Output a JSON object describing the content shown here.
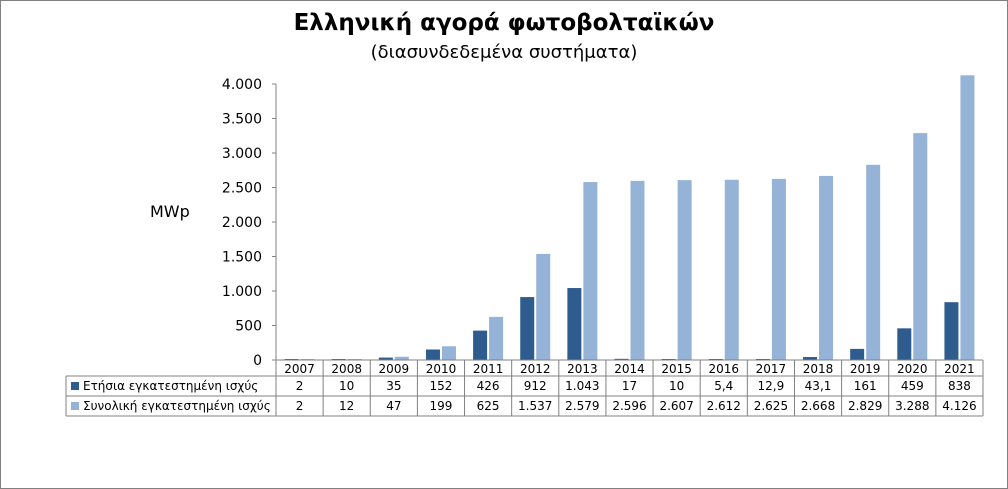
{
  "chart_data": {
    "type": "bar",
    "title": "Ελληνική αγορά φωτοβολταϊκών",
    "subtitle": "(διασυνδεδεμένα συστήματα)",
    "ylabel": "MWp",
    "xlabel": "",
    "ylim": [
      0,
      4000
    ],
    "yticks": [
      0,
      500,
      1000,
      1500,
      2000,
      2500,
      3000,
      3500,
      4000
    ],
    "ytick_labels": [
      "0",
      "500",
      "1.000",
      "1.500",
      "2.000",
      "2.500",
      "3.000",
      "3.500",
      "4.000"
    ],
    "grid": false,
    "legend": "data-table",
    "categories": [
      "2007",
      "2008",
      "2009",
      "2010",
      "2011",
      "2012",
      "2013",
      "2014",
      "2015",
      "2016",
      "2017",
      "2018",
      "2019",
      "2020",
      "2021"
    ],
    "series": [
      {
        "name": "Ετήσια εγκατεστημένη ισχύς",
        "color": "#2E5C8E",
        "values": [
          2,
          10,
          35,
          152,
          426,
          912,
          1043,
          17,
          10,
          5.4,
          12.9,
          43.1,
          161,
          459,
          838
        ],
        "labels": [
          "2",
          "10",
          "35",
          "152",
          "426",
          "912",
          "1.043",
          "17",
          "10",
          "5,4",
          "12,9",
          "43,1",
          "161",
          "459",
          "838"
        ]
      },
      {
        "name": "Συνολική εγκατεστημένη ισχύς",
        "color": "#95B3D7",
        "values": [
          2,
          12,
          47,
          199,
          625,
          1537,
          2579,
          2596,
          2607,
          2612,
          2625,
          2668,
          2829,
          3288,
          4126
        ],
        "labels": [
          "2",
          "12",
          "47",
          "199",
          "625",
          "1.537",
          "2.579",
          "2.596",
          "2.607",
          "2.612",
          "2.625",
          "2.668",
          "2.829",
          "3.288",
          "4.126"
        ]
      }
    ]
  }
}
